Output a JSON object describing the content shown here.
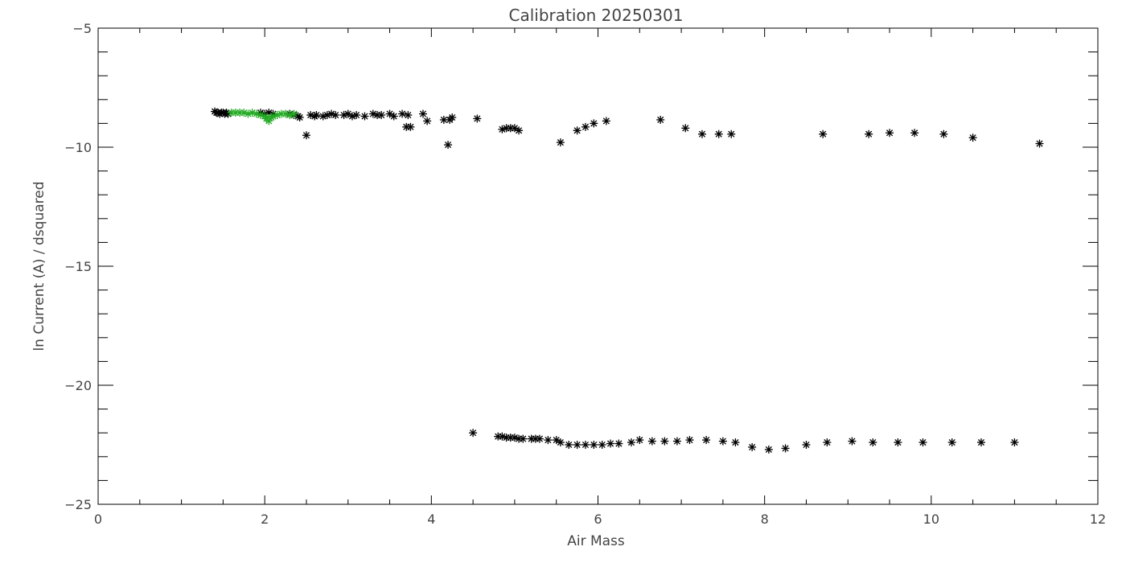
{
  "chart_data": {
    "type": "scatter",
    "title": "Calibration 20250301",
    "xlabel": "Air Mass",
    "ylabel": "ln Current (A) / dsquared",
    "xlim": [
      0,
      12
    ],
    "ylim": [
      -25,
      -5
    ],
    "xticks": [
      0,
      2,
      4,
      6,
      8,
      10,
      12
    ],
    "yticks": [
      -25,
      -20,
      -15,
      -10,
      -5
    ],
    "x_minor_step": 0.5,
    "y_minor_step": 1,
    "grid": false,
    "marker": "asterisk",
    "series": [
      {
        "color": "#000000",
        "points": [
          [
            1.4,
            -8.5
          ],
          [
            1.42,
            -8.55
          ],
          [
            1.44,
            -8.55
          ],
          [
            1.46,
            -8.6
          ],
          [
            1.48,
            -8.55
          ],
          [
            1.5,
            -8.55
          ],
          [
            1.52,
            -8.6
          ],
          [
            1.54,
            -8.55
          ],
          [
            1.56,
            -8.6
          ],
          [
            1.95,
            -8.55
          ],
          [
            2.0,
            -8.6
          ],
          [
            2.05,
            -8.55
          ],
          [
            2.1,
            -8.6
          ],
          [
            2.3,
            -8.6
          ],
          [
            2.35,
            -8.65
          ],
          [
            2.4,
            -8.7
          ],
          [
            2.42,
            -8.75
          ],
          [
            2.5,
            -9.5
          ],
          [
            2.55,
            -8.65
          ],
          [
            2.6,
            -8.7
          ],
          [
            2.62,
            -8.65
          ],
          [
            2.7,
            -8.7
          ],
          [
            2.75,
            -8.65
          ],
          [
            2.8,
            -8.6
          ],
          [
            2.85,
            -8.65
          ],
          [
            2.95,
            -8.65
          ],
          [
            3.0,
            -8.6
          ],
          [
            3.05,
            -8.7
          ],
          [
            3.1,
            -8.65
          ],
          [
            3.2,
            -8.7
          ],
          [
            3.3,
            -8.6
          ],
          [
            3.35,
            -8.65
          ],
          [
            3.4,
            -8.65
          ],
          [
            3.5,
            -8.6
          ],
          [
            3.55,
            -8.7
          ],
          [
            3.65,
            -8.6
          ],
          [
            3.7,
            -9.15
          ],
          [
            3.72,
            -8.65
          ],
          [
            3.75,
            -9.15
          ],
          [
            3.9,
            -8.6
          ],
          [
            3.95,
            -8.9
          ],
          [
            4.15,
            -8.85
          ],
          [
            4.2,
            -9.9
          ],
          [
            4.22,
            -8.85
          ],
          [
            4.25,
            -8.75
          ],
          [
            4.55,
            -8.8
          ],
          [
            4.85,
            -9.25
          ],
          [
            4.9,
            -9.2
          ],
          [
            4.95,
            -9.2
          ],
          [
            5.0,
            -9.2
          ],
          [
            5.05,
            -9.3
          ],
          [
            5.55,
            -9.8
          ],
          [
            5.75,
            -9.3
          ],
          [
            5.85,
            -9.15
          ],
          [
            5.95,
            -9.0
          ],
          [
            6.1,
            -8.9
          ],
          [
            6.75,
            -8.85
          ],
          [
            7.05,
            -9.2
          ],
          [
            7.25,
            -9.45
          ],
          [
            7.45,
            -9.45
          ],
          [
            7.6,
            -9.45
          ],
          [
            8.7,
            -9.45
          ],
          [
            9.25,
            -9.45
          ],
          [
            9.5,
            -9.4
          ],
          [
            9.8,
            -9.4
          ],
          [
            10.15,
            -9.45
          ],
          [
            10.5,
            -9.6
          ],
          [
            11.3,
            -9.85
          ],
          [
            4.5,
            -22.0
          ],
          [
            4.8,
            -22.15
          ],
          [
            4.85,
            -22.15
          ],
          [
            4.9,
            -22.2
          ],
          [
            4.95,
            -22.2
          ],
          [
            5.0,
            -22.2
          ],
          [
            5.05,
            -22.25
          ],
          [
            5.1,
            -22.25
          ],
          [
            5.2,
            -22.25
          ],
          [
            5.25,
            -22.25
          ],
          [
            5.3,
            -22.25
          ],
          [
            5.4,
            -22.3
          ],
          [
            5.5,
            -22.3
          ],
          [
            5.55,
            -22.4
          ],
          [
            5.65,
            -22.5
          ],
          [
            5.75,
            -22.5
          ],
          [
            5.85,
            -22.5
          ],
          [
            5.95,
            -22.5
          ],
          [
            6.05,
            -22.5
          ],
          [
            6.15,
            -22.45
          ],
          [
            6.25,
            -22.45
          ],
          [
            6.4,
            -22.4
          ],
          [
            6.5,
            -22.3
          ],
          [
            6.65,
            -22.35
          ],
          [
            6.8,
            -22.35
          ],
          [
            6.95,
            -22.35
          ],
          [
            7.1,
            -22.3
          ],
          [
            7.3,
            -22.3
          ],
          [
            7.5,
            -22.35
          ],
          [
            7.65,
            -22.4
          ],
          [
            7.85,
            -22.6
          ],
          [
            8.05,
            -22.7
          ],
          [
            8.25,
            -22.65
          ],
          [
            8.5,
            -22.5
          ],
          [
            8.75,
            -22.4
          ],
          [
            9.05,
            -22.35
          ],
          [
            9.3,
            -22.4
          ],
          [
            9.6,
            -22.4
          ],
          [
            9.9,
            -22.4
          ],
          [
            10.25,
            -22.4
          ],
          [
            10.6,
            -22.4
          ],
          [
            11.0,
            -22.4
          ]
        ]
      },
      {
        "color": "#22aa22",
        "points": [
          [
            1.6,
            -8.55
          ],
          [
            1.65,
            -8.55
          ],
          [
            1.7,
            -8.55
          ],
          [
            1.75,
            -8.55
          ],
          [
            1.8,
            -8.6
          ],
          [
            1.85,
            -8.55
          ],
          [
            1.9,
            -8.6
          ],
          [
            1.95,
            -8.65
          ],
          [
            2.0,
            -8.7
          ],
          [
            2.02,
            -8.8
          ],
          [
            2.05,
            -8.9
          ],
          [
            2.08,
            -8.75
          ],
          [
            2.1,
            -8.7
          ],
          [
            2.15,
            -8.65
          ],
          [
            2.2,
            -8.6
          ],
          [
            2.25,
            -8.6
          ],
          [
            2.3,
            -8.65
          ],
          [
            2.35,
            -8.6
          ]
        ]
      }
    ]
  }
}
